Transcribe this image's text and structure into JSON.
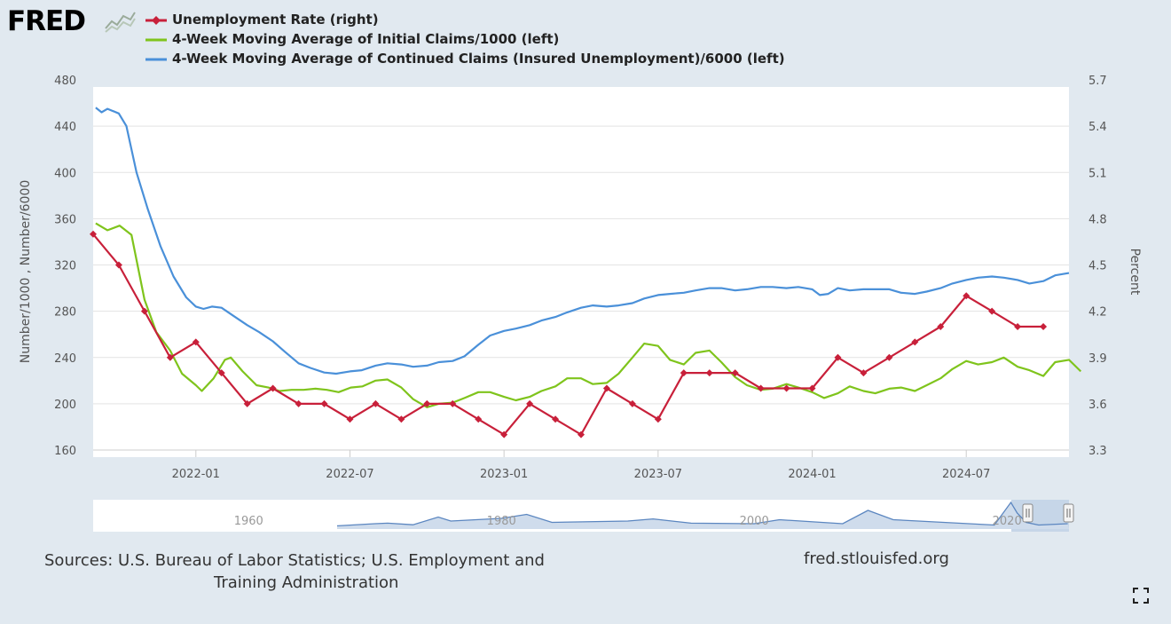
{
  "logo": {
    "text": "FRED"
  },
  "legend": [
    {
      "label": "Unemployment Rate (right)",
      "color": "#c8203a",
      "marker": "diamond"
    },
    {
      "label": "4-Week Moving Average of Initial Claims/1000 (left)",
      "color": "#7fc41c",
      "marker": "none"
    },
    {
      "label": "4-Week Moving Average of Continued Claims (Insured Unemployment)/6000 (left)",
      "color": "#4a90d9",
      "marker": "none"
    }
  ],
  "chart_data": {
    "type": "line",
    "x_range": [
      "2021-09",
      "2024-11"
    ],
    "x_ticks": [
      "2022-01",
      "2022-07",
      "2023-01",
      "2023-07",
      "2024-01",
      "2024-07"
    ],
    "y_left": {
      "label": "Number/1000 , Number/6000",
      "range": [
        160,
        480
      ],
      "ticks": [
        "160",
        "200",
        "240",
        "280",
        "320",
        "360",
        "400",
        "440",
        "480"
      ]
    },
    "y_right": {
      "label": "Percent",
      "range": [
        3.3,
        5.7
      ],
      "ticks": [
        "3.3",
        "3.6",
        "3.9",
        "4.2",
        "4.5",
        "4.8",
        "5.1",
        "5.4",
        "5.7"
      ]
    },
    "grid": true,
    "series": [
      {
        "name": "Unemployment Rate (right)",
        "axis": "right",
        "color": "#c8203a",
        "markers": true,
        "points": [
          [
            "2021-09",
            4.7
          ],
          [
            "2021-10",
            4.5
          ],
          [
            "2021-11",
            4.2
          ],
          [
            "2021-12",
            3.9
          ],
          [
            "2022-01",
            4.0
          ],
          [
            "2022-02",
            3.8
          ],
          [
            "2022-03",
            3.6
          ],
          [
            "2022-04",
            3.7
          ],
          [
            "2022-05",
            3.6
          ],
          [
            "2022-06",
            3.6
          ],
          [
            "2022-07",
            3.5
          ],
          [
            "2022-08",
            3.6
          ],
          [
            "2022-09",
            3.5
          ],
          [
            "2022-10",
            3.6
          ],
          [
            "2022-11",
            3.6
          ],
          [
            "2022-12",
            3.5
          ],
          [
            "2023-01",
            3.4
          ],
          [
            "2023-02",
            3.6
          ],
          [
            "2023-03",
            3.5
          ],
          [
            "2023-04",
            3.4
          ],
          [
            "2023-05",
            3.7
          ],
          [
            "2023-06",
            3.6
          ],
          [
            "2023-07",
            3.5
          ],
          [
            "2023-08",
            3.8
          ],
          [
            "2023-09",
            3.8
          ],
          [
            "2023-10",
            3.8
          ],
          [
            "2023-11",
            3.7
          ],
          [
            "2023-12",
            3.7
          ],
          [
            "2024-01",
            3.7
          ],
          [
            "2024-02",
            3.9
          ],
          [
            "2024-03",
            3.8
          ],
          [
            "2024-04",
            3.9
          ],
          [
            "2024-05",
            4.0
          ],
          [
            "2024-06",
            4.1
          ],
          [
            "2024-07",
            4.3
          ],
          [
            "2024-08",
            4.2
          ],
          [
            "2024-09",
            4.1
          ],
          [
            "2024-10",
            4.1
          ]
        ]
      },
      {
        "name": "4-Week Moving Average of Initial Claims/1000 (left)",
        "axis": "left",
        "color": "#7fc41c",
        "markers": false,
        "points": [
          [
            "2021-09-04",
            356
          ],
          [
            "2021-09-18",
            350
          ],
          [
            "2021-10-02",
            354
          ],
          [
            "2021-10-16",
            346
          ],
          [
            "2021-11-01",
            290
          ],
          [
            "2021-11-15",
            262
          ],
          [
            "2021-12-01",
            246
          ],
          [
            "2021-12-15",
            226
          ],
          [
            "2022-01-01",
            216
          ],
          [
            "2022-01-08",
            211
          ],
          [
            "2022-01-22",
            222
          ],
          [
            "2022-02-05",
            238
          ],
          [
            "2022-02-12",
            240
          ],
          [
            "2022-02-26",
            228
          ],
          [
            "2022-03-12",
            216
          ],
          [
            "2022-03-26",
            214
          ],
          [
            "2022-04-09",
            211
          ],
          [
            "2022-04-23",
            212
          ],
          [
            "2022-05-07",
            212
          ],
          [
            "2022-05-21",
            213
          ],
          [
            "2022-06-04",
            212
          ],
          [
            "2022-06-18",
            210
          ],
          [
            "2022-07-02",
            214
          ],
          [
            "2022-07-16",
            215
          ],
          [
            "2022-08-01",
            220
          ],
          [
            "2022-08-15",
            221
          ],
          [
            "2022-09-01",
            214
          ],
          [
            "2022-09-15",
            204
          ],
          [
            "2022-10-01",
            197
          ],
          [
            "2022-10-15",
            200
          ],
          [
            "2022-11-01",
            201
          ],
          [
            "2022-11-15",
            205
          ],
          [
            "2022-12-01",
            210
          ],
          [
            "2022-12-15",
            210
          ],
          [
            "2023-01-01",
            206
          ],
          [
            "2023-01-15",
            203
          ],
          [
            "2023-02-01",
            206
          ],
          [
            "2023-02-15",
            211
          ],
          [
            "2023-03-01",
            215
          ],
          [
            "2023-03-15",
            222
          ],
          [
            "2023-04-01",
            222
          ],
          [
            "2023-04-15",
            217
          ],
          [
            "2023-05-01",
            218
          ],
          [
            "2023-05-15",
            226
          ],
          [
            "2023-06-01",
            240
          ],
          [
            "2023-06-15",
            252
          ],
          [
            "2023-07-01",
            250
          ],
          [
            "2023-07-15",
            238
          ],
          [
            "2023-08-01",
            234
          ],
          [
            "2023-08-15",
            244
          ],
          [
            "2023-09-01",
            246
          ],
          [
            "2023-09-15",
            236
          ],
          [
            "2023-10-01",
            223
          ],
          [
            "2023-10-15",
            216
          ],
          [
            "2023-11-01",
            212
          ],
          [
            "2023-11-15",
            213
          ],
          [
            "2023-12-01",
            217
          ],
          [
            "2023-12-15",
            214
          ],
          [
            "2024-01-01",
            210
          ],
          [
            "2024-01-15",
            205
          ],
          [
            "2024-02-01",
            209
          ],
          [
            "2024-02-15",
            215
          ],
          [
            "2024-03-01",
            211
          ],
          [
            "2024-03-15",
            209
          ],
          [
            "2024-04-01",
            213
          ],
          [
            "2024-04-15",
            214
          ],
          [
            "2024-05-01",
            211
          ],
          [
            "2024-05-15",
            216
          ],
          [
            "2024-06-01",
            222
          ],
          [
            "2024-06-15",
            230
          ],
          [
            "2024-07-01",
            237
          ],
          [
            "2024-07-15",
            234
          ],
          [
            "2024-08-01",
            236
          ],
          [
            "2024-08-15",
            240
          ],
          [
            "2024-09-01",
            232
          ],
          [
            "2024-09-15",
            229
          ],
          [
            "2024-10-01",
            224
          ],
          [
            "2024-10-15",
            236
          ],
          [
            "2024-11-01",
            238
          ],
          [
            "2024-11-15",
            228
          ]
        ]
      },
      {
        "name": "4-Week Moving Average of Continued Claims (Insured Unemployment)/6000 (left)",
        "axis": "left",
        "color": "#4a90d9",
        "markers": false,
        "points": [
          [
            "2021-09-04",
            456
          ],
          [
            "2021-09-11",
            452
          ],
          [
            "2021-09-18",
            455
          ],
          [
            "2021-10-01",
            451
          ],
          [
            "2021-10-10",
            440
          ],
          [
            "2021-10-22",
            400
          ],
          [
            "2021-11-05",
            368
          ],
          [
            "2021-11-20",
            336
          ],
          [
            "2021-12-05",
            310
          ],
          [
            "2021-12-20",
            292
          ],
          [
            "2022-01-01",
            284
          ],
          [
            "2022-01-10",
            282
          ],
          [
            "2022-01-20",
            284
          ],
          [
            "2022-02-01",
            283
          ],
          [
            "2022-02-15",
            276
          ],
          [
            "2022-03-01",
            268
          ],
          [
            "2022-03-15",
            262
          ],
          [
            "2022-04-01",
            254
          ],
          [
            "2022-04-15",
            245
          ],
          [
            "2022-05-01",
            235
          ],
          [
            "2022-05-15",
            231
          ],
          [
            "2022-06-01",
            227
          ],
          [
            "2022-06-15",
            226
          ],
          [
            "2022-07-01",
            228
          ],
          [
            "2022-07-15",
            229
          ],
          [
            "2022-08-01",
            233
          ],
          [
            "2022-08-15",
            235
          ],
          [
            "2022-09-01",
            234
          ],
          [
            "2022-09-15",
            232
          ],
          [
            "2022-10-01",
            233
          ],
          [
            "2022-10-15",
            236
          ],
          [
            "2022-11-01",
            237
          ],
          [
            "2022-11-15",
            241
          ],
          [
            "2022-12-01",
            251
          ],
          [
            "2022-12-15",
            259
          ],
          [
            "2023-01-01",
            263
          ],
          [
            "2023-01-15",
            265
          ],
          [
            "2023-02-01",
            268
          ],
          [
            "2023-02-15",
            272
          ],
          [
            "2023-03-01",
            275
          ],
          [
            "2023-03-15",
            279
          ],
          [
            "2023-04-01",
            283
          ],
          [
            "2023-04-15",
            285
          ],
          [
            "2023-05-01",
            284
          ],
          [
            "2023-05-15",
            285
          ],
          [
            "2023-06-01",
            287
          ],
          [
            "2023-06-15",
            291
          ],
          [
            "2023-07-01",
            294
          ],
          [
            "2023-07-15",
            295
          ],
          [
            "2023-08-01",
            296
          ],
          [
            "2023-08-15",
            298
          ],
          [
            "2023-09-01",
            300
          ],
          [
            "2023-09-15",
            300
          ],
          [
            "2023-10-01",
            298
          ],
          [
            "2023-10-15",
            299
          ],
          [
            "2023-11-01",
            301
          ],
          [
            "2023-11-15",
            301
          ],
          [
            "2023-12-01",
            300
          ],
          [
            "2023-12-15",
            301
          ],
          [
            "2024-01-01",
            299
          ],
          [
            "2024-01-10",
            294
          ],
          [
            "2024-01-20",
            295
          ],
          [
            "2024-02-01",
            300
          ],
          [
            "2024-02-15",
            298
          ],
          [
            "2024-03-01",
            299
          ],
          [
            "2024-03-15",
            299
          ],
          [
            "2024-04-01",
            299
          ],
          [
            "2024-04-15",
            296
          ],
          [
            "2024-05-01",
            295
          ],
          [
            "2024-05-15",
            297
          ],
          [
            "2024-06-01",
            300
          ],
          [
            "2024-06-15",
            304
          ],
          [
            "2024-07-01",
            307
          ],
          [
            "2024-07-15",
            309
          ],
          [
            "2024-08-01",
            310
          ],
          [
            "2024-08-15",
            309
          ],
          [
            "2024-09-01",
            307
          ],
          [
            "2024-09-15",
            304
          ],
          [
            "2024-10-01",
            306
          ],
          [
            "2024-10-15",
            311
          ],
          [
            "2024-11-01",
            313
          ]
        ]
      }
    ]
  },
  "navigator": {
    "labels": [
      "1960",
      "1980",
      "2000",
      "2020"
    ],
    "series": [
      [
        1967,
        0.12
      ],
      [
        1970,
        0.2
      ],
      [
        1971,
        0.22
      ],
      [
        1973,
        0.16
      ],
      [
        1975,
        0.45
      ],
      [
        1976,
        0.3
      ],
      [
        1980,
        0.4
      ],
      [
        1982,
        0.55
      ],
      [
        1984,
        0.25
      ],
      [
        1990,
        0.3
      ],
      [
        1992,
        0.38
      ],
      [
        1995,
        0.22
      ],
      [
        2000,
        0.2
      ],
      [
        2002,
        0.35
      ],
      [
        2007,
        0.2
      ],
      [
        2009,
        0.7
      ],
      [
        2011,
        0.35
      ],
      [
        2019,
        0.15
      ],
      [
        2020.3,
        1.0
      ],
      [
        2020.8,
        0.6
      ],
      [
        2021.5,
        0.25
      ],
      [
        2022.5,
        0.15
      ],
      [
        2024.8,
        0.2
      ]
    ]
  },
  "footer": {
    "sources_line1": "Sources: U.S. Bureau of Labor Statistics; U.S. Employment and",
    "sources_line2": "Training Administration",
    "site": "fred.stlouisfed.org"
  }
}
